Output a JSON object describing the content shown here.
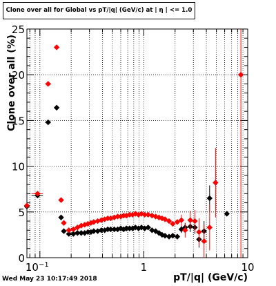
{
  "header": {
    "title": "Clone  over all for Global vs pT/|q| (GeV/c) at |  η | <= 1.0"
  },
  "footer": {
    "timestamp": "Wed May 23 10:17:49 2018"
  },
  "chart_data": {
    "type": "scatter",
    "title": "Clone  over all for Global vs pT/|q| (GeV/c) at |  η | <= 1.0",
    "xlabel": "pT/|q| (GeV/c)",
    "ylabel": "Clone  over all (%)",
    "xscale": "log",
    "xlim": [
      0.075,
      10
    ],
    "ylim": [
      0,
      25
    ],
    "xticks": [
      {
        "v": 0.1,
        "base": "10",
        "exp": "−1"
      },
      {
        "v": 1,
        "label": "1"
      },
      {
        "v": 10,
        "label": "10"
      }
    ],
    "yticks": [
      "0",
      "5",
      "10",
      "15",
      "20",
      "25"
    ],
    "grid": true,
    "series": [
      {
        "color": "#000000",
        "marker": "diamond",
        "points": [
          {
            "x": 0.075,
            "y": 5.6
          },
          {
            "x": 0.095,
            "y": 6.8,
            "xerr": 0.012
          },
          {
            "x": 0.12,
            "y": 14.8,
            "xerr": 0.008
          },
          {
            "x": 0.145,
            "y": 16.4
          },
          {
            "x": 0.16,
            "y": 4.4
          },
          {
            "x": 0.17,
            "y": 2.9
          },
          {
            "x": 0.19,
            "y": 2.6
          },
          {
            "x": 0.21,
            "y": 2.6
          },
          {
            "x": 0.23,
            "y": 2.7
          },
          {
            "x": 0.25,
            "y": 2.7
          },
          {
            "x": 0.27,
            "y": 2.7
          },
          {
            "x": 0.29,
            "y": 2.8
          },
          {
            "x": 0.31,
            "y": 2.8
          },
          {
            "x": 0.33,
            "y": 2.9
          },
          {
            "x": 0.36,
            "y": 2.9
          },
          {
            "x": 0.39,
            "y": 3.0
          },
          {
            "x": 0.42,
            "y": 3.0
          },
          {
            "x": 0.45,
            "y": 3.1
          },
          {
            "x": 0.48,
            "y": 3.1
          },
          {
            "x": 0.52,
            "y": 3.1
          },
          {
            "x": 0.56,
            "y": 3.1
          },
          {
            "x": 0.6,
            "y": 3.2
          },
          {
            "x": 0.64,
            "y": 3.1
          },
          {
            "x": 0.68,
            "y": 3.2
          },
          {
            "x": 0.73,
            "y": 3.2
          },
          {
            "x": 0.78,
            "y": 3.2
          },
          {
            "x": 0.83,
            "y": 3.3
          },
          {
            "x": 0.89,
            "y": 3.2
          },
          {
            "x": 0.95,
            "y": 3.3
          },
          {
            "x": 1.02,
            "y": 3.2
          },
          {
            "x": 1.1,
            "y": 3.3
          },
          {
            "x": 1.2,
            "y": 3.0
          },
          {
            "x": 1.3,
            "y": 2.9
          },
          {
            "x": 1.4,
            "y": 2.7
          },
          {
            "x": 1.5,
            "y": 2.5
          },
          {
            "x": 1.6,
            "y": 2.4
          },
          {
            "x": 1.75,
            "y": 2.3
          },
          {
            "x": 1.9,
            "y": 2.4
          },
          {
            "x": 2.1,
            "y": 2.3
          },
          {
            "x": 2.3,
            "y": 3.1,
            "yerr": 0.4
          },
          {
            "x": 2.5,
            "y": 3.3,
            "yerr": 0.5
          },
          {
            "x": 2.8,
            "y": 3.4,
            "yerr": 0.6
          },
          {
            "x": 3.1,
            "y": 3.3,
            "yerr": 0.7
          },
          {
            "x": 3.4,
            "y": 2.0,
            "yerr": 0.9
          },
          {
            "x": 3.8,
            "y": 2.9,
            "yerr": 1.1
          },
          {
            "x": 4.3,
            "y": 6.5,
            "yerr": 1.4
          },
          {
            "x": 6.3,
            "y": 4.8
          }
        ]
      },
      {
        "color": "#ff0000",
        "marker": "diamond",
        "points": [
          {
            "x": 0.075,
            "y": 5.7
          },
          {
            "x": 0.095,
            "y": 7.0,
            "xerr": 0.012
          },
          {
            "x": 0.12,
            "y": 19.0,
            "xerr": 0.008
          },
          {
            "x": 0.145,
            "y": 23.0
          },
          {
            "x": 0.16,
            "y": 6.3
          },
          {
            "x": 0.17,
            "y": 3.8
          },
          {
            "x": 0.19,
            "y": 3.0
          },
          {
            "x": 0.21,
            "y": 3.1
          },
          {
            "x": 0.23,
            "y": 3.3
          },
          {
            "x": 0.25,
            "y": 3.5
          },
          {
            "x": 0.27,
            "y": 3.6
          },
          {
            "x": 0.29,
            "y": 3.7
          },
          {
            "x": 0.31,
            "y": 3.8
          },
          {
            "x": 0.33,
            "y": 3.9
          },
          {
            "x": 0.36,
            "y": 4.0
          },
          {
            "x": 0.39,
            "y": 4.1
          },
          {
            "x": 0.42,
            "y": 4.2
          },
          {
            "x": 0.45,
            "y": 4.3
          },
          {
            "x": 0.48,
            "y": 4.3
          },
          {
            "x": 0.52,
            "y": 4.4
          },
          {
            "x": 0.56,
            "y": 4.5
          },
          {
            "x": 0.6,
            "y": 4.5
          },
          {
            "x": 0.64,
            "y": 4.6
          },
          {
            "x": 0.68,
            "y": 4.6
          },
          {
            "x": 0.73,
            "y": 4.7
          },
          {
            "x": 0.78,
            "y": 4.7
          },
          {
            "x": 0.83,
            "y": 4.8
          },
          {
            "x": 0.89,
            "y": 4.7
          },
          {
            "x": 0.95,
            "y": 4.8
          },
          {
            "x": 1.02,
            "y": 4.7
          },
          {
            "x": 1.1,
            "y": 4.7
          },
          {
            "x": 1.2,
            "y": 4.6
          },
          {
            "x": 1.3,
            "y": 4.5
          },
          {
            "x": 1.4,
            "y": 4.4
          },
          {
            "x": 1.5,
            "y": 4.3
          },
          {
            "x": 1.6,
            "y": 4.2
          },
          {
            "x": 1.75,
            "y": 4.0
          },
          {
            "x": 1.9,
            "y": 3.7
          },
          {
            "x": 2.1,
            "y": 3.9
          },
          {
            "x": 2.3,
            "y": 4.1,
            "yerr": 0.6
          },
          {
            "x": 2.5,
            "y": 3.0,
            "yerr": 0.8
          },
          {
            "x": 2.8,
            "y": 4.1,
            "yerr": 1.0
          },
          {
            "x": 3.1,
            "y": 4.0,
            "yerr": 1.2
          },
          {
            "x": 3.4,
            "y": 2.8,
            "yerr": 1.5
          },
          {
            "x": 3.8,
            "y": 1.8,
            "yerr": 1.8
          },
          {
            "x": 4.3,
            "y": 3.3,
            "yerr": 2.5
          },
          {
            "x": 4.9,
            "y": 8.2,
            "yerr": 3.8
          },
          {
            "x": 8.6,
            "y": 20.0,
            "yerr": 20.0
          }
        ]
      }
    ]
  }
}
